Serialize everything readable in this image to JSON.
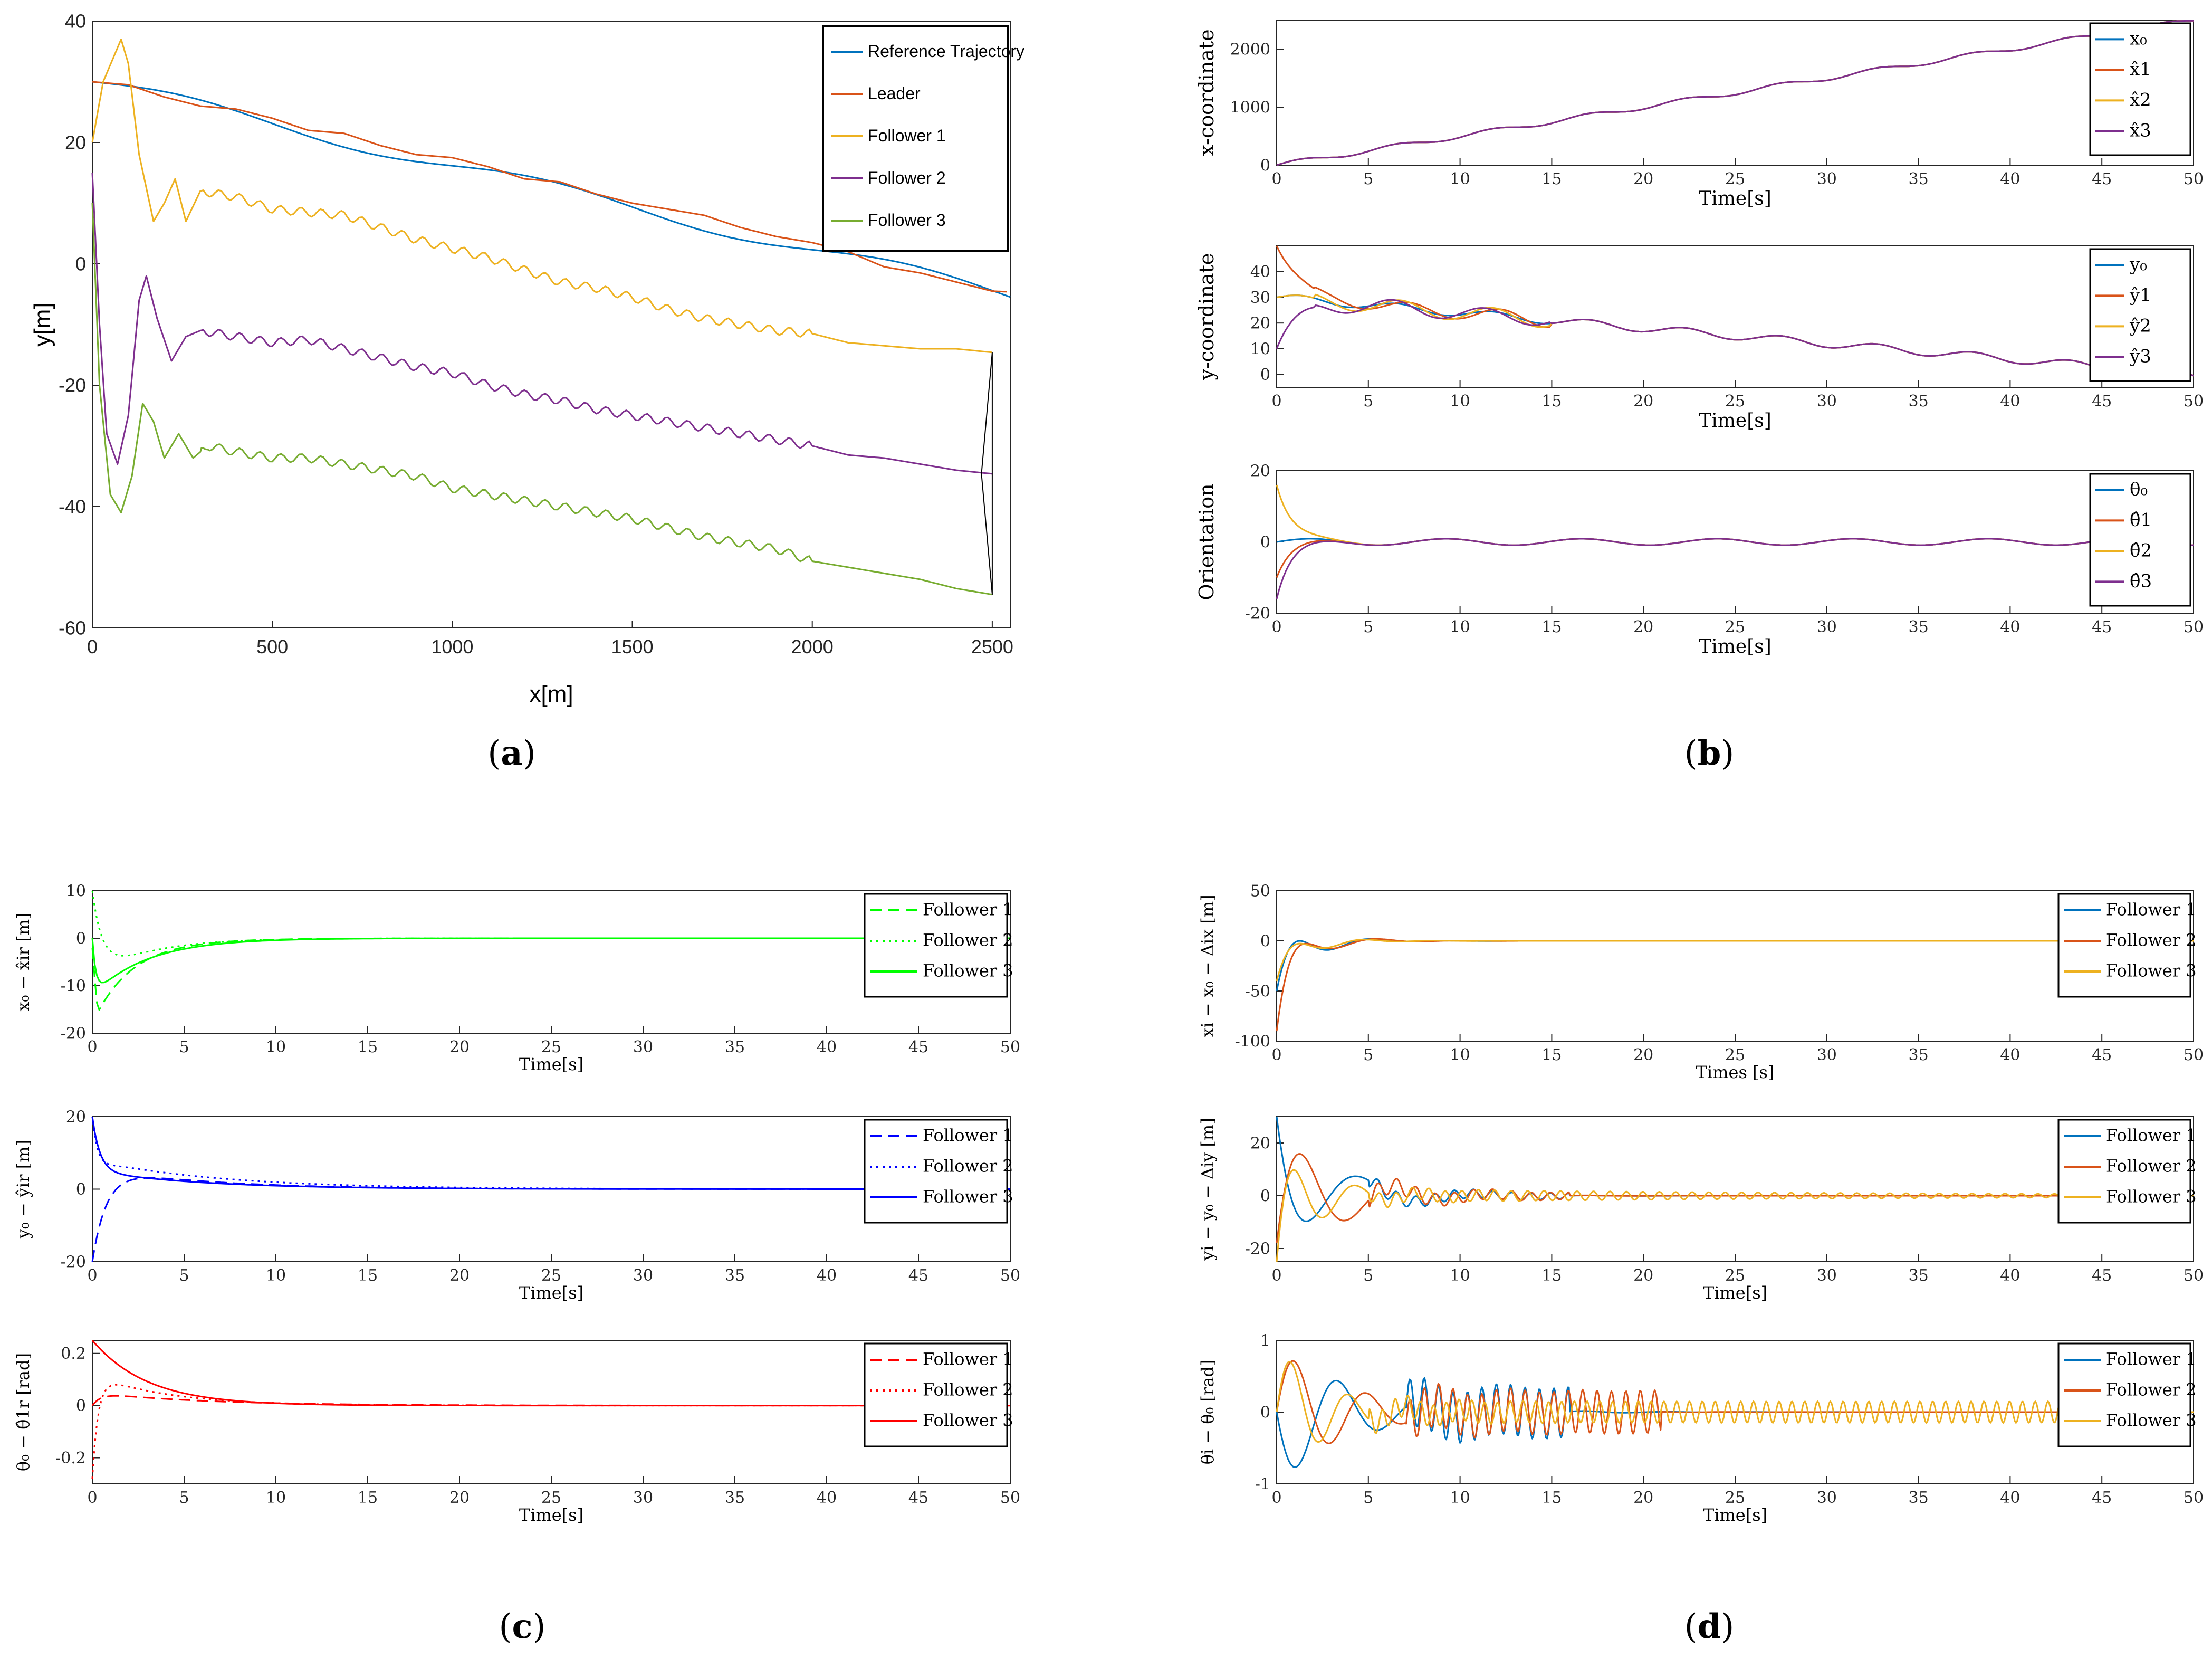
{
  "colors": {
    "blue": "#0072BD",
    "orange": "#D95319",
    "yellow": "#EDB120",
    "purple": "#7E2F8E",
    "green": "#77AC30",
    "brightGreen": "#00FF00",
    "pureBlue": "#0000FF",
    "pureRed": "#FF0000"
  },
  "captions": {
    "a": "a",
    "b": "b",
    "c": "c",
    "d": "d"
  },
  "chart_data": [
    {
      "id": "a",
      "type": "line",
      "title": "",
      "xlabel": "x[m]",
      "ylabel": "y[m]",
      "xlim": [
        0,
        2550
      ],
      "ylim": [
        -60,
        40
      ],
      "xticks": [
        0,
        500,
        1000,
        1500,
        2000,
        2500
      ],
      "yticks": [
        -60,
        -40,
        -20,
        0,
        20,
        40
      ],
      "legend": {
        "entries": [
          "Reference Trajectory",
          "Leader",
          "Follower 1",
          "Follower 2",
          "Follower 3"
        ],
        "placement": "top-right"
      },
      "series": [
        {
          "name": "Leader",
          "color": "orange",
          "points": [
            [
              0,
              30
            ],
            [
              100,
              29.5
            ],
            [
              200,
              27.5
            ],
            [
              300,
              26
            ],
            [
              400,
              25.5
            ],
            [
              500,
              24
            ],
            [
              600,
              22
            ],
            [
              700,
              21.5
            ],
            [
              800,
              19.5
            ],
            [
              900,
              18
            ],
            [
              1000,
              17.5
            ],
            [
              1100,
              16
            ],
            [
              1200,
              14
            ],
            [
              1300,
              13.5
            ],
            [
              1400,
              11.5
            ],
            [
              1500,
              10
            ],
            [
              1600,
              9
            ],
            [
              1700,
              8
            ],
            [
              1800,
              6
            ],
            [
              1900,
              4.5
            ],
            [
              2000,
              3.5
            ],
            [
              2100,
              2
            ],
            [
              2200,
              -0.5
            ],
            [
              2300,
              -1.5
            ],
            [
              2400,
              -3
            ],
            [
              2500,
              -4.5
            ],
            [
              2540,
              -4.6
            ]
          ]
        },
        {
          "name": "Follower 1",
          "color": "yellow",
          "points": [
            [
              0,
              20
            ],
            [
              30,
              30
            ],
            [
              80,
              37
            ],
            [
              100,
              33
            ],
            [
              130,
              18
            ],
            [
              170,
              7
            ],
            [
              200,
              10
            ],
            [
              230,
              14
            ],
            [
              260,
              7
            ],
            [
              300,
              12
            ],
            [
              400,
              11
            ],
            [
              500,
              9
            ],
            [
              600,
              8.5
            ],
            [
              700,
              8
            ],
            [
              800,
              6
            ],
            [
              900,
              4
            ],
            [
              1000,
              2.5
            ],
            [
              1100,
              1
            ],
            [
              1200,
              -1
            ],
            [
              1300,
              -3
            ],
            [
              1400,
              -4
            ],
            [
              1500,
              -5.5
            ],
            [
              1600,
              -7.5
            ],
            [
              1700,
              -9
            ],
            [
              1800,
              -10
            ],
            [
              1900,
              -11
            ],
            [
              2000,
              -11.5
            ],
            [
              2100,
              -13
            ],
            [
              2200,
              -13.5
            ],
            [
              2300,
              -14
            ],
            [
              2400,
              -14
            ],
            [
              2500,
              -14.6
            ]
          ]
        },
        {
          "name": "Follower 2",
          "color": "purple",
          "points": [
            [
              0,
              15
            ],
            [
              20,
              -10
            ],
            [
              40,
              -28
            ],
            [
              70,
              -33
            ],
            [
              100,
              -25
            ],
            [
              130,
              -6
            ],
            [
              150,
              -2
            ],
            [
              180,
              -9
            ],
            [
              220,
              -16
            ],
            [
              260,
              -12
            ],
            [
              300,
              -11
            ],
            [
              400,
              -12
            ],
            [
              500,
              -13
            ],
            [
              600,
              -12.5
            ],
            [
              700,
              -14
            ],
            [
              800,
              -15.5
            ],
            [
              900,
              -17
            ],
            [
              1000,
              -18
            ],
            [
              1100,
              -20
            ],
            [
              1200,
              -21.5
            ],
            [
              1300,
              -22.5
            ],
            [
              1400,
              -24
            ],
            [
              1500,
              -25
            ],
            [
              1600,
              -26
            ],
            [
              1700,
              -27
            ],
            [
              1800,
              -28
            ],
            [
              1900,
              -29
            ],
            [
              2000,
              -30
            ],
            [
              2100,
              -31.5
            ],
            [
              2200,
              -32
            ],
            [
              2300,
              -33
            ],
            [
              2400,
              -34
            ],
            [
              2500,
              -34.6
            ]
          ]
        },
        {
          "name": "Follower 3",
          "color": "green",
          "points": [
            [
              0,
              10
            ],
            [
              20,
              -20
            ],
            [
              50,
              -38
            ],
            [
              80,
              -41
            ],
            [
              110,
              -35
            ],
            [
              140,
              -23
            ],
            [
              170,
              -26
            ],
            [
              200,
              -32
            ],
            [
              240,
              -28
            ],
            [
              280,
              -32
            ],
            [
              320,
              -30
            ],
            [
              400,
              -31
            ],
            [
              500,
              -32
            ],
            [
              600,
              -32
            ],
            [
              700,
              -33
            ],
            [
              800,
              -34
            ],
            [
              900,
              -35
            ],
            [
              1000,
              -37
            ],
            [
              1100,
              -38
            ],
            [
              1200,
              -39
            ],
            [
              1300,
              -40
            ],
            [
              1400,
              -41
            ],
            [
              1500,
              -42
            ],
            [
              1600,
              -43.5
            ],
            [
              1700,
              -45
            ],
            [
              1800,
              -46
            ],
            [
              1900,
              -47
            ],
            [
              2000,
              -49
            ],
            [
              2100,
              -50
            ],
            [
              2200,
              -51
            ],
            [
              2300,
              -52
            ],
            [
              2400,
              -53.5
            ],
            [
              2500,
              -54.5
            ]
          ]
        }
      ]
    },
    {
      "id": "b1",
      "type": "line",
      "xlabel": "Time[s]",
      "ylabel": "x-coordinate",
      "xlim": [
        0,
        50
      ],
      "ylim": [
        0,
        2500
      ],
      "xticks": [
        0,
        5,
        10,
        15,
        20,
        25,
        30,
        35,
        40,
        45,
        50
      ],
      "yticks": [
        0,
        1000,
        2000
      ],
      "legend": {
        "entries": [
          "x₀",
          "x̂1",
          "x̂2",
          "x̂3"
        ],
        "placement": "top-right"
      }
    },
    {
      "id": "b2",
      "type": "line",
      "xlabel": "Time[s]",
      "ylabel": "y-coordinate",
      "xlim": [
        0,
        50
      ],
      "ylim": [
        -5,
        50
      ],
      "xticks": [
        0,
        5,
        10,
        15,
        20,
        25,
        30,
        35,
        40,
        45,
        50
      ],
      "yticks": [
        0,
        10,
        20,
        30,
        40
      ],
      "legend": {
        "entries": [
          "y₀",
          "ŷ1",
          "ŷ2",
          "ŷ3"
        ],
        "placement": "top-right"
      }
    },
    {
      "id": "b3",
      "type": "line",
      "xlabel": "Time[s]",
      "ylabel": "Orientation",
      "xlim": [
        0,
        50
      ],
      "ylim": [
        -20,
        20
      ],
      "xticks": [
        0,
        5,
        10,
        15,
        20,
        25,
        30,
        35,
        40,
        45,
        50
      ],
      "yticks": [
        -20,
        0,
        20
      ],
      "legend": {
        "entries": [
          "θ₀",
          "θ̂1",
          "θ̂2",
          "θ̂3"
        ],
        "placement": "top-right"
      }
    },
    {
      "id": "c1",
      "type": "line",
      "xlabel": "Time[s]",
      "ylabel": "x₀ − x̂ir [m]",
      "xlim": [
        0,
        50
      ],
      "ylim": [
        -20,
        10
      ],
      "xticks": [
        0,
        5,
        10,
        15,
        20,
        25,
        30,
        35,
        40,
        45,
        50
      ],
      "yticks": [
        -20,
        -10,
        0,
        10
      ],
      "legend": {
        "entries": [
          "Follower 1",
          "Follower 2",
          "Follower 3"
        ],
        "placement": "top-right"
      }
    },
    {
      "id": "c2",
      "type": "line",
      "xlabel": "Time[s]",
      "ylabel": "y₀ − ŷir [m]",
      "xlim": [
        0,
        50
      ],
      "ylim": [
        -20,
        20
      ],
      "xticks": [
        0,
        5,
        10,
        15,
        20,
        25,
        30,
        35,
        40,
        45,
        50
      ],
      "yticks": [
        -20,
        0,
        20
      ],
      "legend": {
        "entries": [
          "Follower 1",
          "Follower 2",
          "Follower 3"
        ],
        "placement": "top-right"
      }
    },
    {
      "id": "c3",
      "type": "line",
      "xlabel": "Time[s]",
      "ylabel": "θ₀ − θ̂1r [rad]",
      "xlim": [
        0,
        50
      ],
      "ylim": [
        -0.3,
        0.25
      ],
      "xticks": [
        0,
        5,
        10,
        15,
        20,
        25,
        30,
        35,
        40,
        45,
        50
      ],
      "yticks": [
        -0.2,
        0,
        0.2
      ],
      "legend": {
        "entries": [
          "Follower 1",
          "Follower 2",
          "Follower 3"
        ],
        "placement": "top-right"
      }
    },
    {
      "id": "d1",
      "type": "line",
      "xlabel": "Times [s]",
      "ylabel": "xi − x₀ − Δix [m]",
      "xlim": [
        0,
        50
      ],
      "ylim": [
        -100,
        50
      ],
      "xticks": [
        0,
        5,
        10,
        15,
        20,
        25,
        30,
        35,
        40,
        45,
        50
      ],
      "yticks": [
        -100,
        -50,
        0,
        50
      ],
      "legend": {
        "entries": [
          "Follower 1",
          "Follower 2",
          "Follower 3"
        ],
        "placement": "top-right"
      }
    },
    {
      "id": "d2",
      "type": "line",
      "xlabel": "Time[s]",
      "ylabel": "yi − y₀ − Δiy [m]",
      "xlim": [
        0,
        50
      ],
      "ylim": [
        -25,
        30
      ],
      "xticks": [
        0,
        5,
        10,
        15,
        20,
        25,
        30,
        35,
        40,
        45,
        50
      ],
      "yticks": [
        -20,
        0,
        20
      ],
      "legend": {
        "entries": [
          "Follower 1",
          "Follower 2",
          "Follower 3"
        ],
        "placement": "top-right"
      }
    },
    {
      "id": "d3",
      "type": "line",
      "xlabel": "Time[s]",
      "ylabel": "θi − θ₀ [rad]",
      "xlim": [
        0,
        50
      ],
      "ylim": [
        -1,
        1
      ],
      "xticks": [
        0,
        5,
        10,
        15,
        20,
        25,
        30,
        35,
        40,
        45,
        50
      ],
      "yticks": [
        -1,
        0,
        1
      ],
      "legend": {
        "entries": [
          "Follower 1",
          "Follower 2",
          "Follower 3"
        ],
        "placement": "top-right"
      }
    }
  ]
}
